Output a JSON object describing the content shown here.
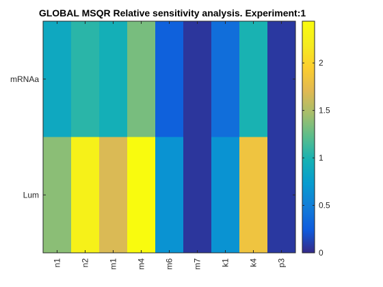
{
  "chart_data": {
    "type": "heatmap",
    "title": "GLOBAL MSQR Relative sensitivity analysis. Experiment:1",
    "xlabel": "",
    "ylabel": "",
    "x_categories": [
      "n1",
      "n2",
      "m1",
      "m4",
      "m6",
      "m7",
      "k1",
      "k4",
      "p3"
    ],
    "y_categories": [
      "mRNAa",
      "Lum"
    ],
    "values": [
      [
        0.87,
        1.05,
        0.95,
        1.32,
        0.28,
        0.06,
        0.38,
        0.99,
        0.07
      ],
      [
        1.38,
        2.28,
        1.68,
        2.44,
        0.66,
        0.06,
        0.66,
        1.83,
        0.07
      ]
    ],
    "colormap": "parula",
    "colorbar": {
      "range": [
        0,
        2.44
      ],
      "ticks": [
        0,
        0.5,
        1,
        1.5,
        2
      ],
      "tick_labels": [
        "0",
        "0.5",
        "1",
        "1.5",
        "2"
      ]
    }
  }
}
